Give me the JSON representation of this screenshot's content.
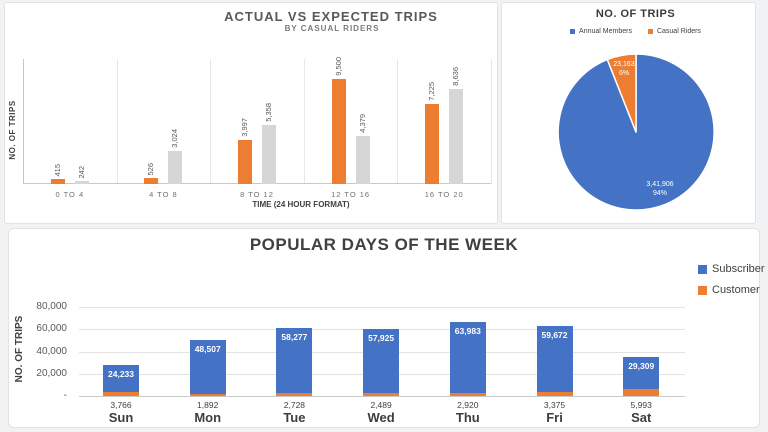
{
  "chart_data": [
    {
      "id": "actual_vs_expected",
      "type": "bar",
      "title": "ACTUAL VS EXPECTED TRIPS",
      "subtitle": "BY CASUAL RIDERS",
      "xlabel": "TIME (24 HOUR FORMAT)",
      "ylabel": "NO. OF TRIPS",
      "categories": [
        "0 TO 4",
        "4 TO 8",
        "8 TO 12",
        "12 TO 16",
        "16 TO 20"
      ],
      "series": [
        {
          "name": "Actual",
          "color": "#ED7D31",
          "values": [
            415,
            526,
            3997,
            9500,
            7225
          ],
          "labels": [
            "415",
            "526",
            "3,997",
            "9,500",
            "7,225"
          ]
        },
        {
          "name": "Expected",
          "color": "#D6D6D6",
          "values": [
            242,
            3024,
            5358,
            4379,
            8636
          ],
          "labels": [
            "242",
            "3,024",
            "5,358",
            "4,379",
            "8,636"
          ]
        }
      ],
      "ylim": [
        0,
        10000
      ],
      "legend": "none",
      "grid": "vertical category separators, no y tick labels",
      "data_label_style": "rotated 90deg above bars"
    },
    {
      "id": "no_of_trips_share",
      "type": "pie",
      "title": "NO. OF TRIPS",
      "legend_position": "top",
      "slices": [
        {
          "name": "Annual Members",
          "value": 341906,
          "value_label": "3,41,906",
          "percent_label": "94%",
          "color": "#4472C4"
        },
        {
          "name": "Casual Riders",
          "value": 23163,
          "value_label": "23,163",
          "percent_label": "6%",
          "color": "#ED7D31"
        }
      ]
    },
    {
      "id": "popular_days",
      "type": "bar",
      "stacked": true,
      "title": "POPULAR DAYS OF THE WEEK",
      "ylabel": "NO. OF TRIPS",
      "categories": [
        "Sun",
        "Mon",
        "Tue",
        "Wed",
        "Thu",
        "Fri",
        "Sat"
      ],
      "series": [
        {
          "name": "Subscriber",
          "color": "#4472C4",
          "values": [
            24233,
            48507,
            58277,
            57925,
            63983,
            59672,
            29309
          ],
          "labels": [
            "24,233",
            "48,507",
            "58,277",
            "57,925",
            "63,983",
            "59,672",
            "29,309"
          ]
        },
        {
          "name": "Customer",
          "color": "#ED7D31",
          "values": [
            3766,
            1892,
            2728,
            2489,
            2920,
            3375,
            5993
          ],
          "labels": [
            "3,766",
            "1,892",
            "2,728",
            "2,489",
            "2,920",
            "3,375",
            "5,993"
          ]
        }
      ],
      "ylim": [
        0,
        80000
      ],
      "y_ticks": [
        {
          "value": 80000,
          "label": "80,000"
        },
        {
          "value": 60000,
          "label": "60,000"
        },
        {
          "value": 40000,
          "label": "40,000"
        },
        {
          "value": 20000,
          "label": "20,000"
        },
        {
          "value": 0,
          "label": "-"
        }
      ],
      "legend_position": "right",
      "grid": "horizontal gridlines",
      "data_label_style": "subscriber value white inside bar top; customer value below axis"
    }
  ]
}
